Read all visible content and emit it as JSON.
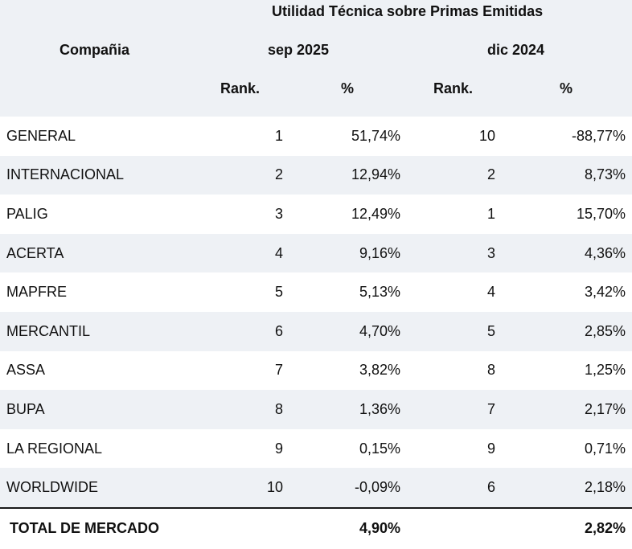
{
  "header": {
    "group_title": "Utilidad Técnica sobre Primas Emitidas",
    "company_label": "Compañia",
    "period1": "sep 2025",
    "period2": "dic 2024",
    "rank_label": "Rank.",
    "pct_label": "%"
  },
  "rows": [
    {
      "company": "GENERAL",
      "rank1": "1",
      "pct1": "51,74%",
      "rank2": "10",
      "pct2": "-88,77%"
    },
    {
      "company": "INTERNACIONAL",
      "rank1": "2",
      "pct1": "12,94%",
      "rank2": "2",
      "pct2": "8,73%"
    },
    {
      "company": "PALIG",
      "rank1": "3",
      "pct1": "12,49%",
      "rank2": "1",
      "pct2": "15,70%"
    },
    {
      "company": "ACERTA",
      "rank1": "4",
      "pct1": "9,16%",
      "rank2": "3",
      "pct2": "4,36%"
    },
    {
      "company": "MAPFRE",
      "rank1": "5",
      "pct1": "5,13%",
      "rank2": "4",
      "pct2": "3,42%"
    },
    {
      "company": "MERCANTIL",
      "rank1": "6",
      "pct1": "4,70%",
      "rank2": "5",
      "pct2": "2,85%"
    },
    {
      "company": "ASSA",
      "rank1": "7",
      "pct1": "3,82%",
      "rank2": "8",
      "pct2": "1,25%"
    },
    {
      "company": "BUPA",
      "rank1": "8",
      "pct1": "1,36%",
      "rank2": "7",
      "pct2": "2,17%"
    },
    {
      "company": "LA REGIONAL",
      "rank1": "9",
      "pct1": "0,15%",
      "rank2": "9",
      "pct2": "0,71%"
    },
    {
      "company": "WORLDWIDE",
      "rank1": "10",
      "pct1": "-0,09%",
      "rank2": "6",
      "pct2": "2,18%"
    }
  ],
  "total": {
    "label": "TOTAL DE MERCADO",
    "pct1": "4,90%",
    "pct2": "2,82%"
  },
  "colors": {
    "shade": "#eef1f5",
    "text": "#111111"
  }
}
